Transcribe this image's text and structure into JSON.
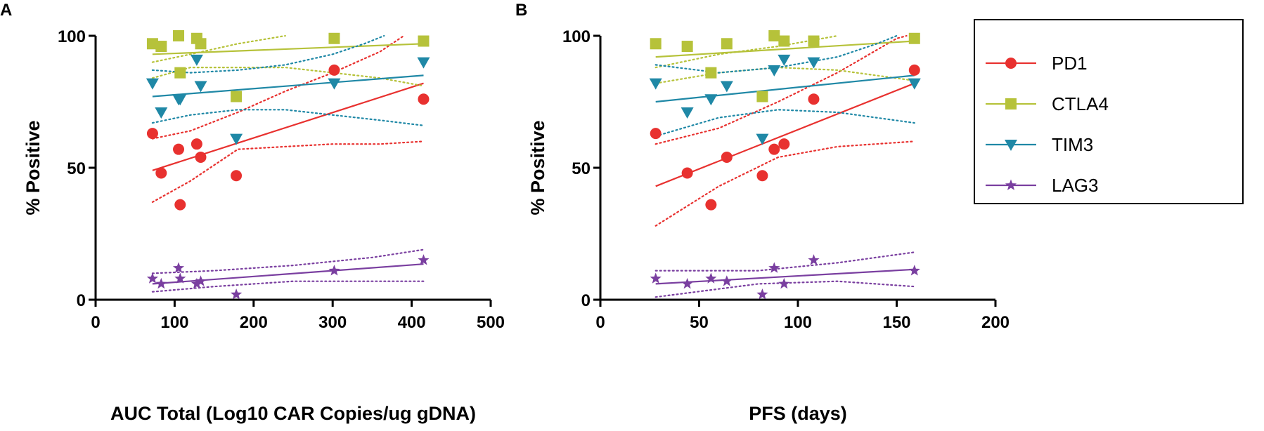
{
  "colors": {
    "PD1": "#e8312f",
    "CTLA4": "#b6c23a",
    "TIM3": "#1f88a6",
    "LAG3": "#7a3fa0"
  },
  "legend": {
    "items": [
      {
        "name": "PD1",
        "marker": "circle"
      },
      {
        "name": "CTLA4",
        "marker": "square"
      },
      {
        "name": "TIM3",
        "marker": "triangle-down"
      },
      {
        "name": "LAG3",
        "marker": "star"
      }
    ]
  },
  "chart_data": [
    {
      "panel": "A",
      "type": "scatter",
      "xlabel": "AUC Total (Log10 CAR Copies/ug gDNA)",
      "ylabel": "% Positive",
      "xlim": [
        0,
        500
      ],
      "ylim": [
        0,
        100
      ],
      "xticks": [
        0,
        100,
        200,
        300,
        400,
        500
      ],
      "yticks": [
        0,
        50,
        100
      ],
      "series": [
        {
          "name": "PD1",
          "points": [
            [
              72,
              63
            ],
            [
              83,
              48
            ],
            [
              105,
              57
            ],
            [
              107,
              36
            ],
            [
              128,
              59
            ],
            [
              133,
              54
            ],
            [
              178,
              47
            ],
            [
              302,
              87
            ],
            [
              415,
              76
            ]
          ],
          "fit": [
            [
              72,
              49
            ],
            [
              415,
              82
            ]
          ],
          "ci_upper": [
            [
              72,
              61
            ],
            [
              120,
              64
            ],
            [
              180,
              71
            ],
            [
              240,
              79
            ],
            [
              300,
              86
            ],
            [
              360,
              94
            ],
            [
              390,
              100
            ]
          ],
          "ci_lower": [
            [
              72,
              37
            ],
            [
              120,
              45
            ],
            [
              180,
              57
            ],
            [
              240,
              58
            ],
            [
              300,
              59
            ],
            [
              360,
              59
            ],
            [
              415,
              60
            ]
          ]
        },
        {
          "name": "CTLA4",
          "points": [
            [
              72,
              97
            ],
            [
              83,
              96
            ],
            [
              105,
              100
            ],
            [
              107,
              86
            ],
            [
              128,
              99
            ],
            [
              133,
              97
            ],
            [
              178,
              77
            ],
            [
              302,
              99
            ],
            [
              415,
              98
            ]
          ],
          "fit": [
            [
              72,
              93
            ],
            [
              415,
              97
            ]
          ],
          "ci_upper": [
            [
              72,
              90
            ],
            [
              120,
              93
            ],
            [
              180,
              97
            ],
            [
              240,
              100
            ]
          ],
          "ci_lower": [
            [
              72,
              84
            ],
            [
              120,
              88
            ],
            [
              180,
              88
            ],
            [
              240,
              88
            ],
            [
              300,
              86
            ],
            [
              360,
              84
            ],
            [
              415,
              81
            ]
          ]
        },
        {
          "name": "TIM3",
          "points": [
            [
              72,
              82
            ],
            [
              83,
              71
            ],
            [
              105,
              76
            ],
            [
              107,
              76
            ],
            [
              128,
              91
            ],
            [
              133,
              81
            ],
            [
              178,
              61
            ],
            [
              302,
              82
            ],
            [
              415,
              90
            ]
          ],
          "fit": [
            [
              72,
              77
            ],
            [
              415,
              85
            ]
          ],
          "ci_upper": [
            [
              72,
              87
            ],
            [
              120,
              86
            ],
            [
              180,
              87
            ],
            [
              240,
              89
            ],
            [
              300,
              93
            ],
            [
              340,
              97
            ],
            [
              365,
              100
            ]
          ],
          "ci_lower": [
            [
              72,
              67
            ],
            [
              120,
              70
            ],
            [
              180,
              72
            ],
            [
              240,
              72
            ],
            [
              300,
              70
            ],
            [
              360,
              68
            ],
            [
              415,
              66
            ]
          ]
        },
        {
          "name": "LAG3",
          "points": [
            [
              72,
              8
            ],
            [
              83,
              6
            ],
            [
              105,
              12
            ],
            [
              107,
              8
            ],
            [
              128,
              6
            ],
            [
              133,
              7
            ],
            [
              178,
              2
            ],
            [
              302,
              11
            ],
            [
              415,
              15
            ]
          ],
          "fit": [
            [
              72,
              6
            ],
            [
              415,
              13.5
            ]
          ],
          "ci_upper": [
            [
              72,
              10
            ],
            [
              150,
              11
            ],
            [
              250,
              13
            ],
            [
              350,
              16
            ],
            [
              415,
              19
            ]
          ],
          "ci_lower": [
            [
              72,
              3
            ],
            [
              150,
              5
            ],
            [
              250,
              7
            ],
            [
              350,
              7
            ],
            [
              415,
              7
            ]
          ]
        }
      ]
    },
    {
      "panel": "B",
      "type": "scatter",
      "xlabel": "PFS (days)",
      "ylabel": "% Positive",
      "xlim": [
        0,
        200
      ],
      "ylim": [
        0,
        100
      ],
      "xticks": [
        0,
        50,
        100,
        150,
        200
      ],
      "yticks": [
        0,
        50,
        100
      ],
      "series": [
        {
          "name": "PD1",
          "points": [
            [
              28,
              63
            ],
            [
              44,
              48
            ],
            [
              56,
              36
            ],
            [
              64,
              54
            ],
            [
              82,
              47
            ],
            [
              88,
              57
            ],
            [
              93,
              59
            ],
            [
              108,
              76
            ],
            [
              159,
              87
            ]
          ],
          "fit": [
            [
              28,
              43
            ],
            [
              159,
              82
            ]
          ],
          "ci_upper": [
            [
              28,
              59
            ],
            [
              60,
              65
            ],
            [
              90,
              75
            ],
            [
              120,
              86
            ],
            [
              150,
              99
            ],
            [
              155,
              100
            ]
          ],
          "ci_lower": [
            [
              28,
              28
            ],
            [
              60,
              43
            ],
            [
              90,
              54
            ],
            [
              120,
              58
            ],
            [
              159,
              60
            ]
          ]
        },
        {
          "name": "CTLA4",
          "points": [
            [
              28,
              97
            ],
            [
              44,
              96
            ],
            [
              56,
              86
            ],
            [
              64,
              97
            ],
            [
              82,
              77
            ],
            [
              88,
              100
            ],
            [
              93,
              98
            ],
            [
              108,
              98
            ],
            [
              159,
              99
            ]
          ],
          "fit": [
            [
              28,
              92
            ],
            [
              159,
              98
            ]
          ],
          "ci_upper": [
            [
              28,
              88
            ],
            [
              60,
              93
            ],
            [
              90,
              96
            ],
            [
              120,
              100
            ]
          ],
          "ci_lower": [
            [
              28,
              82
            ],
            [
              60,
              86
            ],
            [
              90,
              88
            ],
            [
              120,
              87
            ],
            [
              159,
              83
            ]
          ]
        },
        {
          "name": "TIM3",
          "points": [
            [
              28,
              82
            ],
            [
              44,
              71
            ],
            [
              56,
              76
            ],
            [
              64,
              81
            ],
            [
              82,
              61
            ],
            [
              88,
              87
            ],
            [
              93,
              91
            ],
            [
              108,
              90
            ],
            [
              159,
              82
            ]
          ],
          "fit": [
            [
              28,
              75
            ],
            [
              159,
              85
            ]
          ],
          "ci_upper": [
            [
              28,
              89
            ],
            [
              60,
              86
            ],
            [
              90,
              88
            ],
            [
              120,
              92
            ],
            [
              140,
              97
            ],
            [
              150,
              100
            ]
          ],
          "ci_lower": [
            [
              28,
              62
            ],
            [
              60,
              69
            ],
            [
              90,
              72
            ],
            [
              120,
              71
            ],
            [
              159,
              67
            ]
          ]
        },
        {
          "name": "LAG3",
          "points": [
            [
              28,
              8
            ],
            [
              44,
              6
            ],
            [
              56,
              8
            ],
            [
              64,
              7
            ],
            [
              82,
              2
            ],
            [
              88,
              12
            ],
            [
              93,
              6
            ],
            [
              108,
              15
            ],
            [
              159,
              11
            ]
          ],
          "fit": [
            [
              28,
              6
            ],
            [
              159,
              11.5
            ]
          ],
          "ci_upper": [
            [
              28,
              11
            ],
            [
              80,
              11
            ],
            [
              120,
              14
            ],
            [
              159,
              18
            ]
          ],
          "ci_lower": [
            [
              28,
              1
            ],
            [
              80,
              6
            ],
            [
              120,
              7
            ],
            [
              159,
              5
            ]
          ]
        }
      ]
    }
  ]
}
